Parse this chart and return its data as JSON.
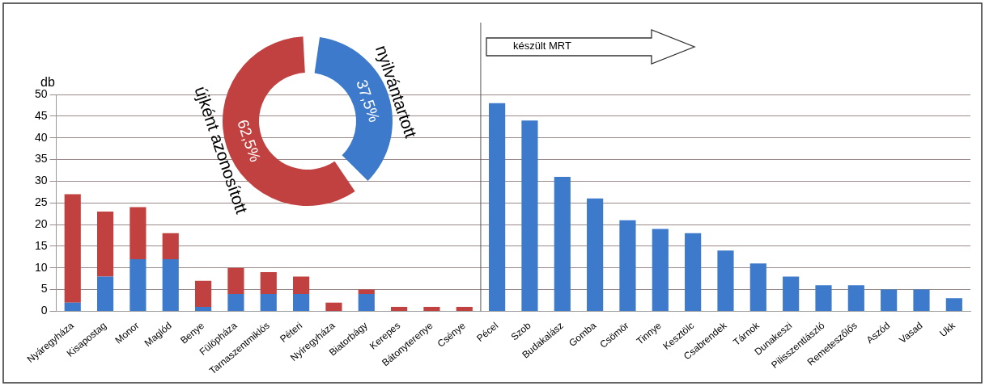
{
  "chart_data": [
    {
      "type": "bar",
      "stacked": true,
      "ylabel": "db",
      "categories": [
        "Nyáregyháza",
        "Kisapostag",
        "Monor",
        "Maglód",
        "Benye",
        "Fülöpháza",
        "Tarnaszentmiklós",
        "Péteri",
        "Nyíregyháza",
        "Biatorbágy",
        "Kerepes",
        "Bátonyterenye",
        "Csénye",
        "Pécel",
        "Szob",
        "Budakalász",
        "Gomba",
        "Csömör",
        "Tinnye",
        "Kesztölc",
        "Csabrendek",
        "Tárnok",
        "Dunakeszi",
        "Pilisszentlászló",
        "Remeteszőlős",
        "Aszód",
        "Vasad",
        "Ukk"
      ],
      "series": [
        {
          "color": "#3d7acb",
          "values": [
            2,
            8,
            12,
            12,
            1,
            4,
            4,
            4,
            0,
            4,
            0,
            0,
            0,
            48,
            44,
            31,
            26,
            21,
            19,
            18,
            14,
            11,
            8,
            6,
            6,
            5,
            5,
            3
          ]
        },
        {
          "color": "#c0413f",
          "values": [
            25,
            15,
            12,
            6,
            6,
            6,
            5,
            4,
            2,
            1,
            1,
            1,
            1,
            0,
            0,
            0,
            0,
            0,
            0,
            0,
            0,
            0,
            0,
            0,
            0,
            0,
            0,
            0
          ]
        }
      ],
      "ylim": [
        0,
        50
      ],
      "yticks": [
        0,
        5,
        10,
        15,
        20,
        25,
        30,
        35,
        40,
        45,
        50
      ],
      "grid": "y",
      "legend": false,
      "ref_lines": [
        {
          "axis": "x",
          "value": "Pécel",
          "color": "#555555"
        }
      ],
      "annotations": [
        "készült MRT"
      ]
    },
    {
      "type": "donut",
      "categories": [
        "nyilvántartott",
        "újként azonosított"
      ],
      "values": [
        37.5,
        62.5
      ],
      "colors": [
        "#3d7acb",
        "#c0413f"
      ],
      "value_labels": [
        "37,5%",
        "62,5%"
      ],
      "legend": false
    }
  ]
}
